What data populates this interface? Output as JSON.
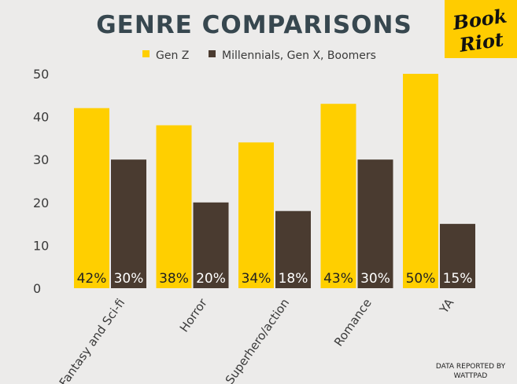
{
  "chart_data": {
    "type": "bar",
    "title": "GENRE COMPARISONS",
    "categories": [
      "Fantasy and Sci-fi",
      "Horror",
      "Superhero/action",
      "Romance",
      "YA"
    ],
    "series": [
      {
        "name": "Gen Z",
        "color": "#ffcf00",
        "values": [
          42,
          38,
          34,
          43,
          50
        ],
        "labels": [
          "42%",
          "38%",
          "34%",
          "43%",
          "50%"
        ]
      },
      {
        "name": "Millennials, Gen X, Boomers",
        "color": "#4a3b30",
        "values": [
          30,
          20,
          18,
          30,
          15
        ],
        "labels": [
          "30%",
          "20%",
          "18%",
          "30%",
          "15%"
        ]
      }
    ],
    "yticks": [
      "0",
      "10",
      "20",
      "30",
      "40",
      "50"
    ],
    "ylim": [
      0,
      50
    ],
    "xlabel": "",
    "ylabel": "",
    "legend": "top"
  },
  "logo": {
    "line1": "Book",
    "line2": "Riot"
  },
  "source": {
    "line1": "DATA REPORTED BY",
    "line2": "WATTPAD"
  },
  "colors": {
    "background": "#ecebea",
    "title": "#37474f",
    "gen_z": "#ffcf00",
    "older": "#4a3b30",
    "axis_text": "#3a3a3a"
  }
}
